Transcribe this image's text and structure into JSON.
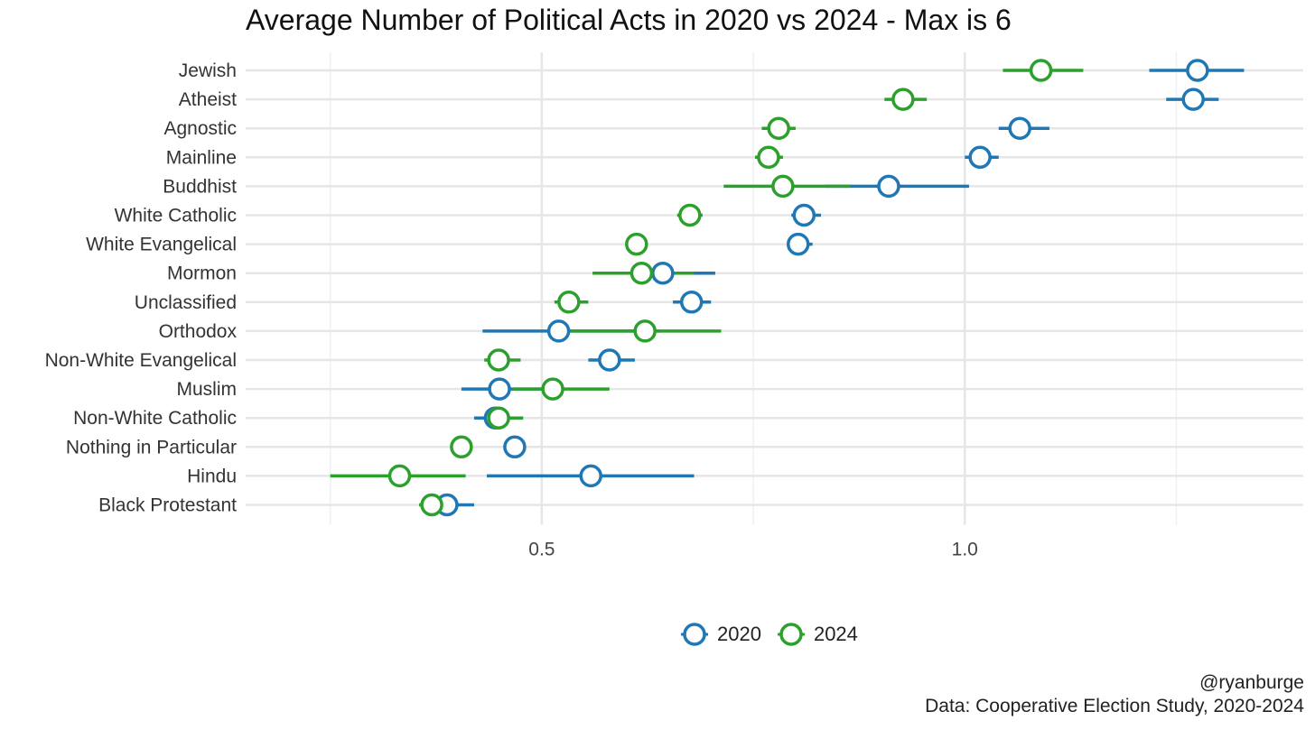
{
  "chart_data": {
    "type": "scatter",
    "title": "Average Number of Political Acts in 2020 vs 2024 - Max is 6",
    "xlabel": "",
    "ylabel": "",
    "xlim": [
      0.15,
      1.4
    ],
    "x_ticks": [
      0.5,
      1.0
    ],
    "x_tick_labels": [
      "0.5",
      "1.0"
    ],
    "grid": true,
    "legend_position": "bottom",
    "categories": [
      "Jewish",
      "Atheist",
      "Agnostic",
      "Mainline",
      "Buddhist",
      "White Catholic",
      "White Evangelical",
      "Mormon",
      "Unclassified",
      "Orthodox",
      "Non-White Evangelical",
      "Muslim",
      "Non-White Catholic",
      "Nothing in Particular",
      "Hindu",
      "Black Protestant"
    ],
    "series": [
      {
        "name": "2020",
        "color": "#1f77b4",
        "values": [
          1.275,
          1.27,
          1.065,
          1.018,
          0.91,
          0.81,
          0.803,
          0.643,
          0.677,
          0.52,
          0.58,
          0.45,
          0.445,
          0.468,
          0.558,
          0.388
        ],
        "lower": [
          1.218,
          1.238,
          1.04,
          1.0,
          0.835,
          0.795,
          0.79,
          0.58,
          0.655,
          0.43,
          0.555,
          0.405,
          0.42,
          0.468,
          0.435,
          0.388
        ],
        "upper": [
          1.33,
          1.3,
          1.1,
          1.04,
          1.005,
          0.83,
          0.82,
          0.705,
          0.7,
          0.64,
          0.61,
          0.5,
          0.47,
          0.468,
          0.68,
          0.42
        ]
      },
      {
        "name": "2024",
        "color": "#2ca02c",
        "values": [
          1.09,
          0.927,
          0.78,
          0.768,
          0.785,
          0.675,
          0.612,
          0.618,
          0.532,
          0.622,
          0.449,
          0.513,
          0.449,
          0.405,
          0.332,
          0.37
        ],
        "lower": [
          1.045,
          0.905,
          0.76,
          0.752,
          0.715,
          0.66,
          0.612,
          0.56,
          0.515,
          0.51,
          0.432,
          0.465,
          0.432,
          0.405,
          0.25,
          0.355
        ],
        "upper": [
          1.14,
          0.955,
          0.8,
          0.785,
          0.865,
          0.69,
          0.612,
          0.68,
          0.555,
          0.712,
          0.475,
          0.58,
          0.478,
          0.405,
          0.41,
          0.385
        ]
      }
    ]
  },
  "caption": {
    "author": "@ryanburge",
    "source": "Data: Cooperative Election Study, 2020-2024"
  }
}
